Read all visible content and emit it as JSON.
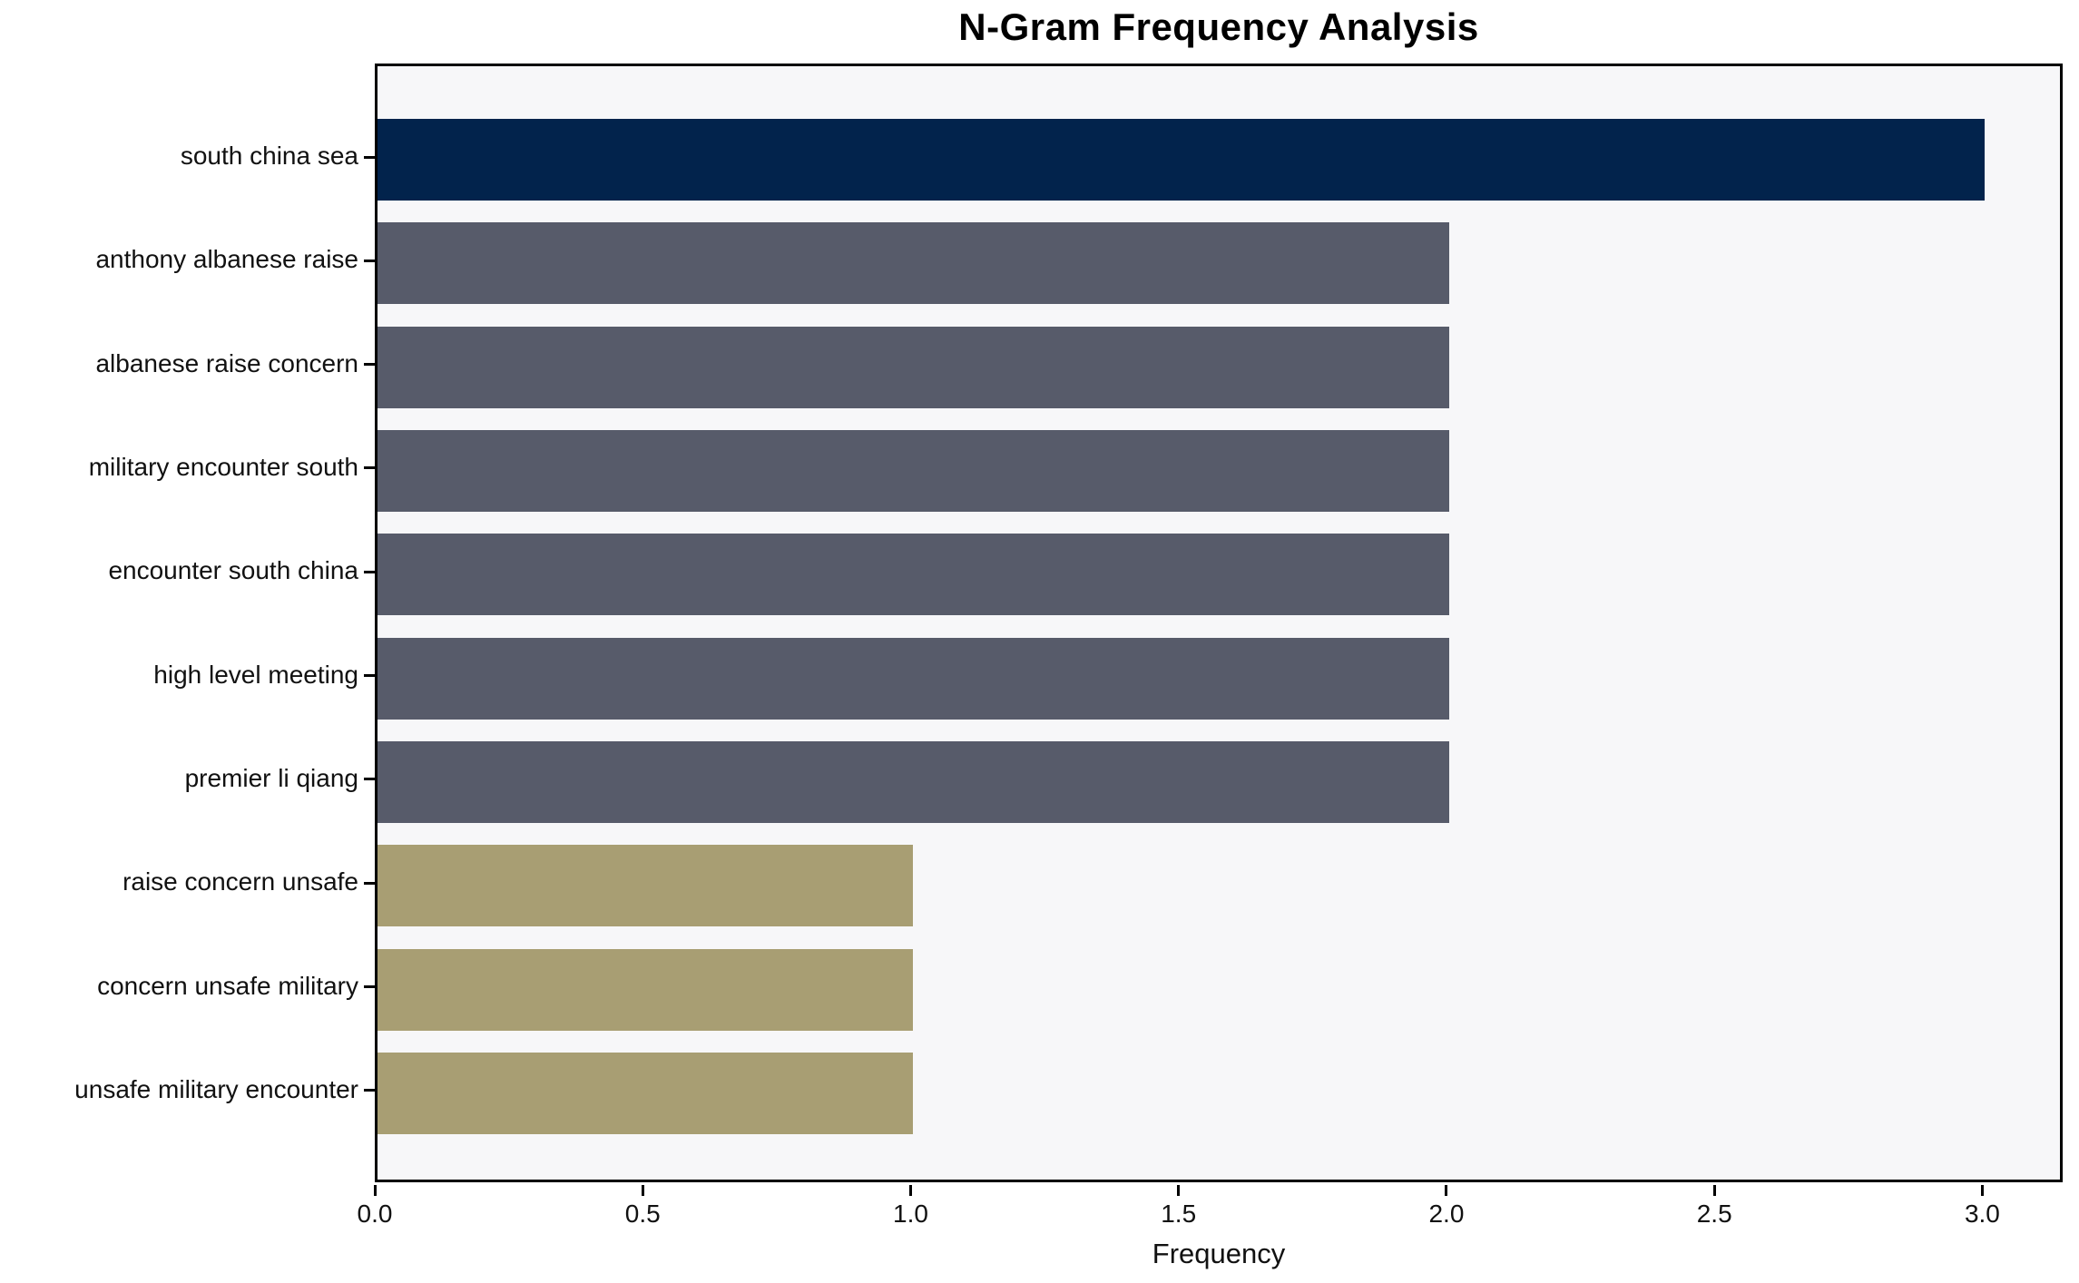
{
  "chart_data": {
    "type": "bar",
    "orientation": "horizontal",
    "title": "N-Gram Frequency Analysis",
    "xlabel": "Frequency",
    "ylabel": "",
    "categories": [
      "south china sea",
      "anthony albanese raise",
      "albanese raise concern",
      "military encounter south",
      "encounter south china",
      "high level meeting",
      "premier li qiang",
      "raise concern unsafe",
      "concern unsafe military",
      "unsafe military encounter"
    ],
    "values": [
      3,
      2,
      2,
      2,
      2,
      2,
      2,
      1,
      1,
      1
    ],
    "bar_colors": [
      "#02234c",
      "#575b6a",
      "#575b6a",
      "#575b6a",
      "#575b6a",
      "#575b6a",
      "#575b6a",
      "#a89e73",
      "#a89e73",
      "#a89e73"
    ],
    "x_ticks": [
      0.0,
      0.5,
      1.0,
      1.5,
      2.0,
      2.5,
      3.0
    ],
    "x_tick_labels": [
      "0.0",
      "0.5",
      "1.0",
      "1.5",
      "2.0",
      "2.5",
      "3.0"
    ],
    "xlim": [
      0,
      3.15
    ],
    "grid": false,
    "legend_position": "none",
    "colors": {
      "highest_bar": "#02234c",
      "mid_bar": "#575b6a",
      "low_bar": "#a89e73",
      "plot_background": "#f7f7f9",
      "figure_background": "#ffffff",
      "axis": "#000000"
    }
  }
}
